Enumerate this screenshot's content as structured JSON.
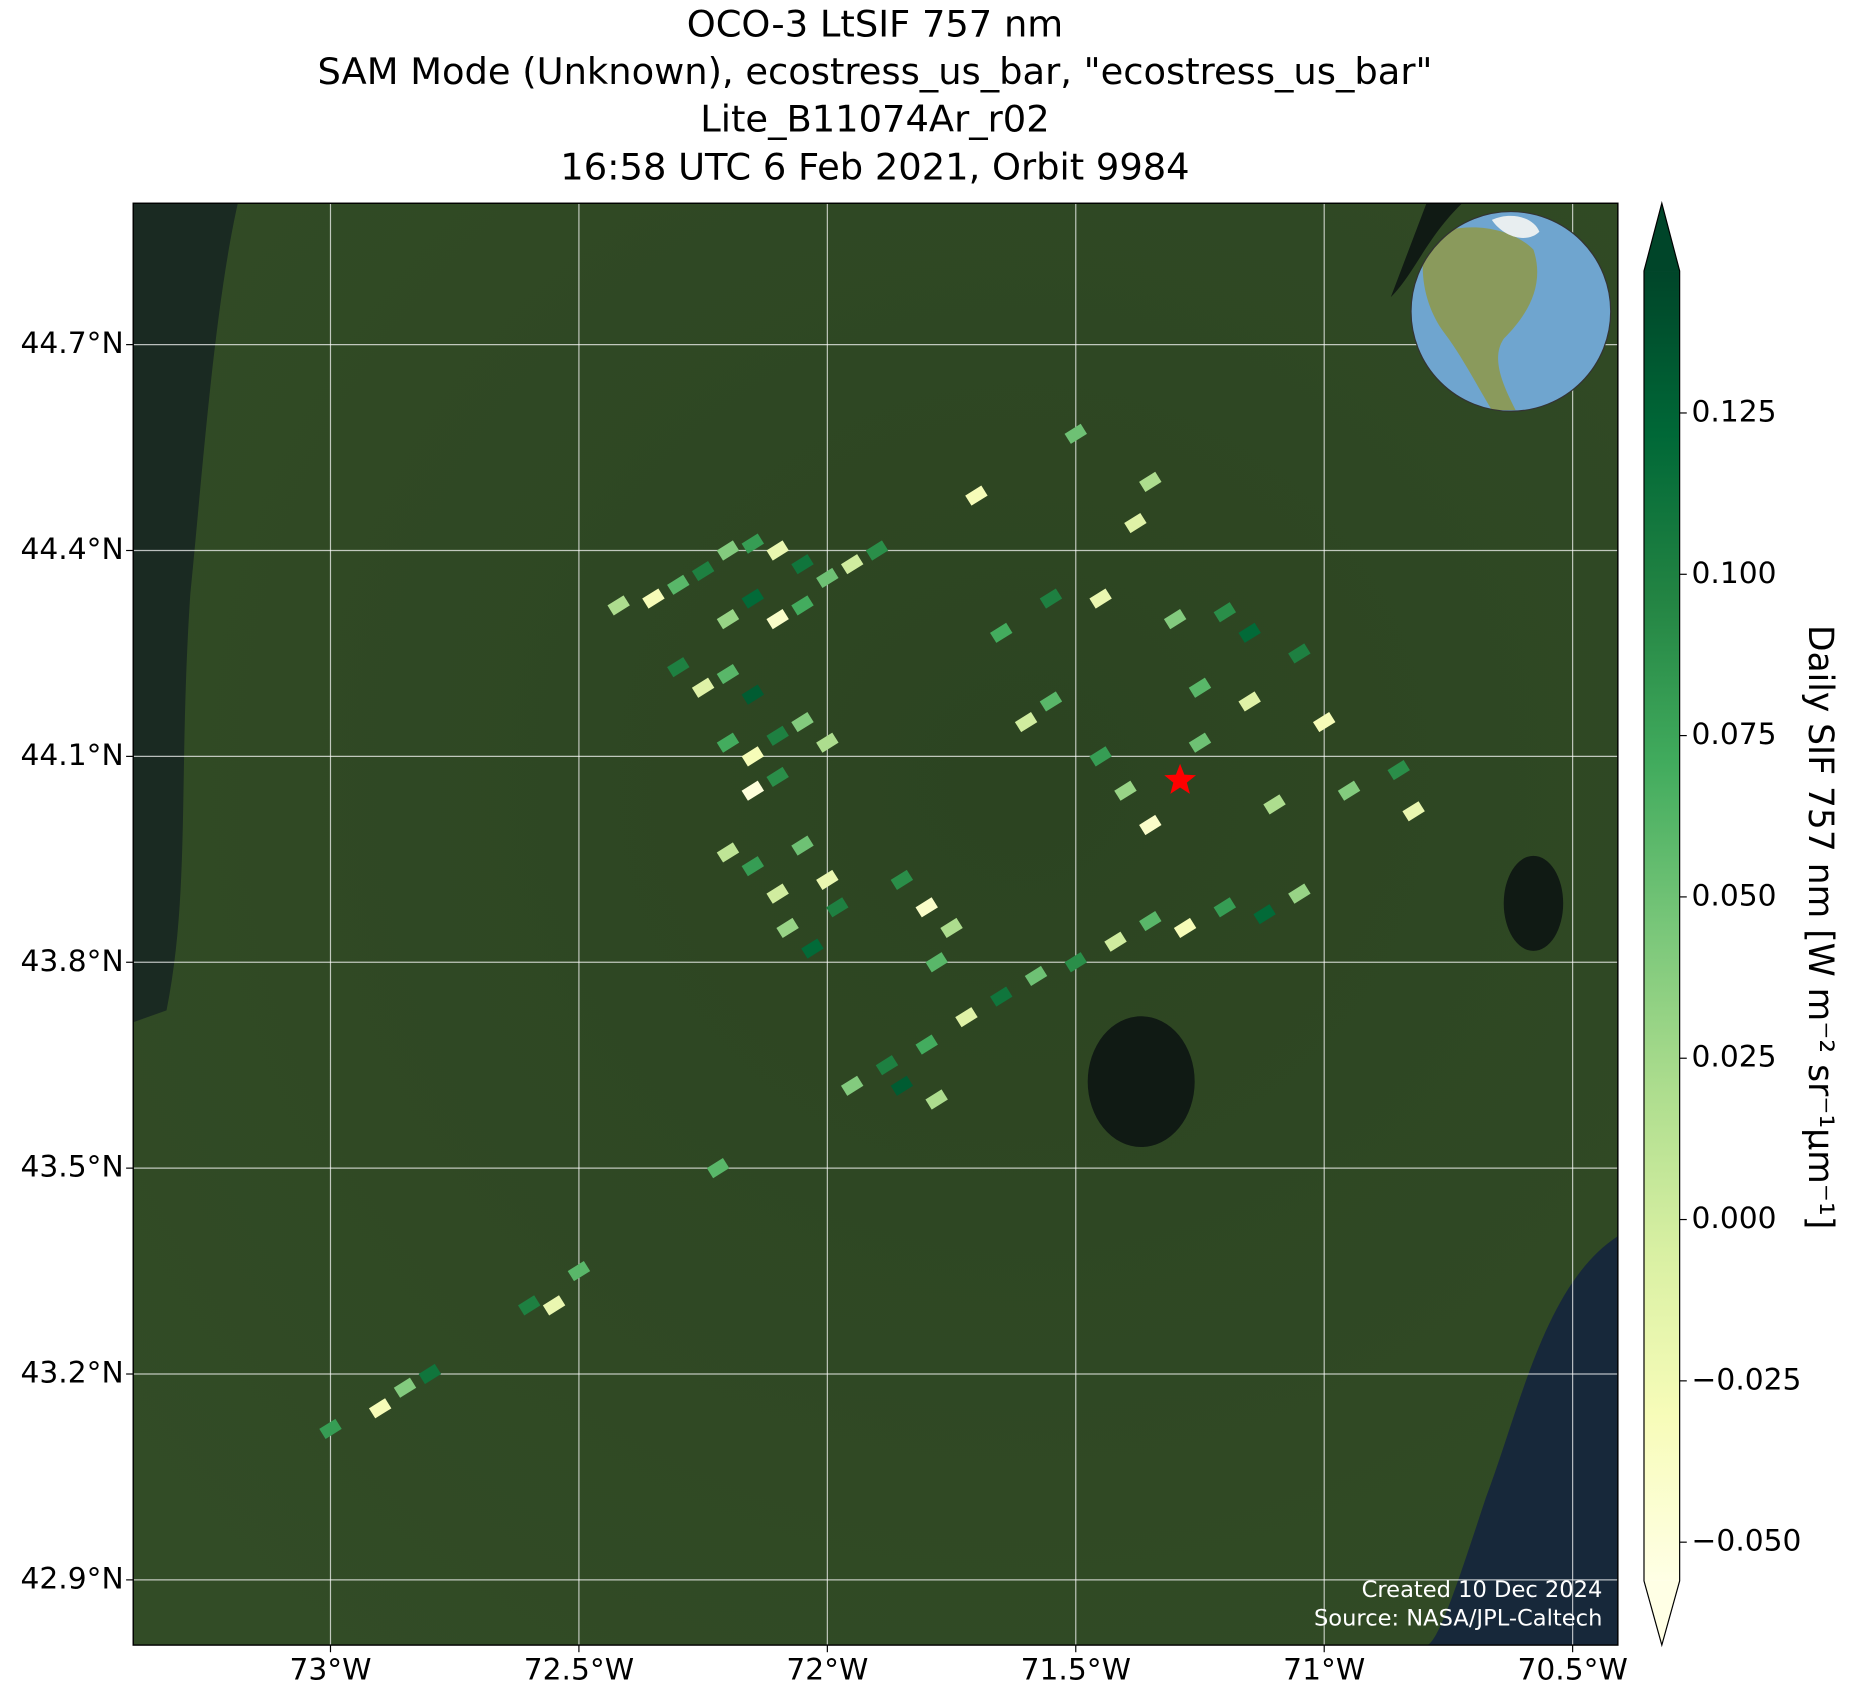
{
  "chart_data": {
    "type": "map",
    "title_lines": [
      "OCO-3 LtSIF 757 nm",
      "SAM Mode (Unknown), ecostress_us_bar, \"ecostress_us_bar\"",
      "Lite_B11074Ar_r02",
      "16:58 UTC 6 Feb 2021, Orbit 9984"
    ],
    "xlim": [
      -73.397,
      -70.409
    ],
    "ylim": [
      42.805,
      44.906
    ],
    "xticks": [
      {
        "value": -73,
        "label": "73°W"
      },
      {
        "value": -72.5,
        "label": "72.5°W"
      },
      {
        "value": -72,
        "label": "72°W"
      },
      {
        "value": -71.5,
        "label": "71.5°W"
      },
      {
        "value": -71,
        "label": "71°W"
      },
      {
        "value": -70.5,
        "label": "70.5°W"
      }
    ],
    "yticks": [
      {
        "value": 44.7,
        "label": "44.7°N"
      },
      {
        "value": 44.4,
        "label": "44.4°N"
      },
      {
        "value": 44.1,
        "label": "44.1°N"
      },
      {
        "value": 43.8,
        "label": "43.8°N"
      },
      {
        "value": 43.5,
        "label": "43.5°N"
      },
      {
        "value": 43.2,
        "label": "43.2°N"
      },
      {
        "value": 42.9,
        "label": "42.9°N"
      }
    ],
    "grid": true,
    "colormap": "YlGn",
    "clim": [
      -0.056,
      0.147
    ],
    "cticks": [
      {
        "value": -0.05,
        "label": "−0.050"
      },
      {
        "value": -0.025,
        "label": "−0.025"
      },
      {
        "value": 0,
        "label": "0.000"
      },
      {
        "value": 0.025,
        "label": "0.025"
      },
      {
        "value": 0.05,
        "label": "0.050"
      },
      {
        "value": 0.075,
        "label": "0.075"
      },
      {
        "value": 0.1,
        "label": "0.100"
      },
      {
        "value": 0.125,
        "label": "0.125"
      }
    ],
    "colorbar_label": "Daily SIF 757 nm [W m⁻² sr⁻¹μm⁻¹]",
    "target": [
      -71.29,
      44.065
    ],
    "target_color": "#ff0000",
    "points": [
      [
        -72.42,
        44.32,
        0.02
      ],
      [
        -72.35,
        44.33,
        -0.03
      ],
      [
        -72.3,
        44.35,
        0.06
      ],
      [
        -72.25,
        44.37,
        0.1
      ],
      [
        -72.2,
        44.4,
        0.04
      ],
      [
        -72.15,
        44.41,
        0.08
      ],
      [
        -72.1,
        44.4,
        -0.02
      ],
      [
        -72.05,
        44.38,
        0.11
      ],
      [
        -72.0,
        44.36,
        0.05
      ],
      [
        -71.95,
        44.38,
        0.0
      ],
      [
        -71.9,
        44.4,
        0.09
      ],
      [
        -72.15,
        44.33,
        0.12
      ],
      [
        -72.1,
        44.3,
        -0.04
      ],
      [
        -72.05,
        44.32,
        0.07
      ],
      [
        -72.2,
        44.3,
        0.03
      ],
      [
        -72.3,
        44.23,
        0.1
      ],
      [
        -72.25,
        44.2,
        -0.01
      ],
      [
        -72.2,
        44.22,
        0.06
      ],
      [
        -72.15,
        44.19,
        0.13
      ],
      [
        -72.2,
        44.12,
        0.07
      ],
      [
        -72.15,
        44.1,
        -0.03
      ],
      [
        -72.1,
        44.13,
        0.1
      ],
      [
        -72.05,
        44.15,
        0.04
      ],
      [
        -72.1,
        44.07,
        0.09
      ],
      [
        -72.0,
        44.12,
        0.02
      ],
      [
        -72.15,
        44.05,
        -0.05
      ],
      [
        -72.2,
        43.96,
        0.01
      ],
      [
        -72.15,
        43.94,
        0.08
      ],
      [
        -72.05,
        43.97,
        0.05
      ],
      [
        -72.0,
        43.92,
        -0.02
      ],
      [
        -71.98,
        43.88,
        0.1
      ],
      [
        -72.08,
        43.85,
        0.03
      ],
      [
        -72.03,
        43.82,
        0.12
      ],
      [
        -72.1,
        43.9,
        0.0
      ],
      [
        -71.85,
        43.92,
        0.09
      ],
      [
        -71.8,
        43.88,
        -0.04
      ],
      [
        -71.75,
        43.85,
        0.02
      ],
      [
        -71.78,
        43.8,
        0.06
      ],
      [
        -71.95,
        43.62,
        0.04
      ],
      [
        -71.88,
        43.65,
        0.1
      ],
      [
        -71.8,
        43.68,
        0.07
      ],
      [
        -71.72,
        43.72,
        -0.01
      ],
      [
        -71.65,
        43.75,
        0.11
      ],
      [
        -71.58,
        43.78,
        0.05
      ],
      [
        -71.5,
        43.8,
        0.09
      ],
      [
        -71.42,
        43.83,
        0.0
      ],
      [
        -71.35,
        43.86,
        0.06
      ],
      [
        -71.28,
        43.85,
        -0.03
      ],
      [
        -71.2,
        43.88,
        0.08
      ],
      [
        -71.12,
        43.87,
        0.12
      ],
      [
        -71.05,
        43.9,
        0.03
      ],
      [
        -71.85,
        43.62,
        0.13
      ],
      [
        -71.78,
        43.6,
        0.02
      ],
      [
        -71.65,
        44.28,
        0.07
      ],
      [
        -71.55,
        44.33,
        0.1
      ],
      [
        -71.45,
        44.33,
        -0.02
      ],
      [
        -71.3,
        44.3,
        0.04
      ],
      [
        -71.2,
        44.31,
        0.09
      ],
      [
        -71.15,
        44.28,
        0.12
      ],
      [
        -71.25,
        44.2,
        0.06
      ],
      [
        -71.15,
        44.18,
        -0.01
      ],
      [
        -71.05,
        44.25,
        0.1
      ],
      [
        -71.4,
        44.05,
        0.03
      ],
      [
        -71.35,
        44.0,
        -0.04
      ],
      [
        -71.45,
        44.1,
        0.08
      ],
      [
        -71.25,
        44.12,
        0.05
      ],
      [
        -71.1,
        44.03,
        0.02
      ],
      [
        -71.0,
        44.15,
        -0.03
      ],
      [
        -71.6,
        44.15,
        0.0
      ],
      [
        -71.55,
        44.18,
        0.06
      ],
      [
        -70.95,
        44.05,
        0.04
      ],
      [
        -70.85,
        44.08,
        0.09
      ],
      [
        -70.82,
        44.02,
        -0.02
      ],
      [
        -71.7,
        44.48,
        -0.03
      ],
      [
        -71.5,
        44.57,
        0.05
      ],
      [
        -71.35,
        44.5,
        0.02
      ],
      [
        -71.38,
        44.44,
        -0.01
      ],
      [
        -72.5,
        43.35,
        0.06
      ],
      [
        -72.55,
        43.3,
        -0.02
      ],
      [
        -72.6,
        43.3,
        0.1
      ],
      [
        -72.85,
        43.18,
        0.04
      ],
      [
        -72.9,
        43.15,
        -0.03
      ],
      [
        -73.0,
        43.12,
        0.08
      ],
      [
        -72.8,
        43.2,
        0.11
      ],
      [
        -72.22,
        43.5,
        0.06
      ]
    ],
    "credits": [
      "Created 10 Dec 2024",
      "Source: NASA/JPL-Caltech"
    ]
  }
}
